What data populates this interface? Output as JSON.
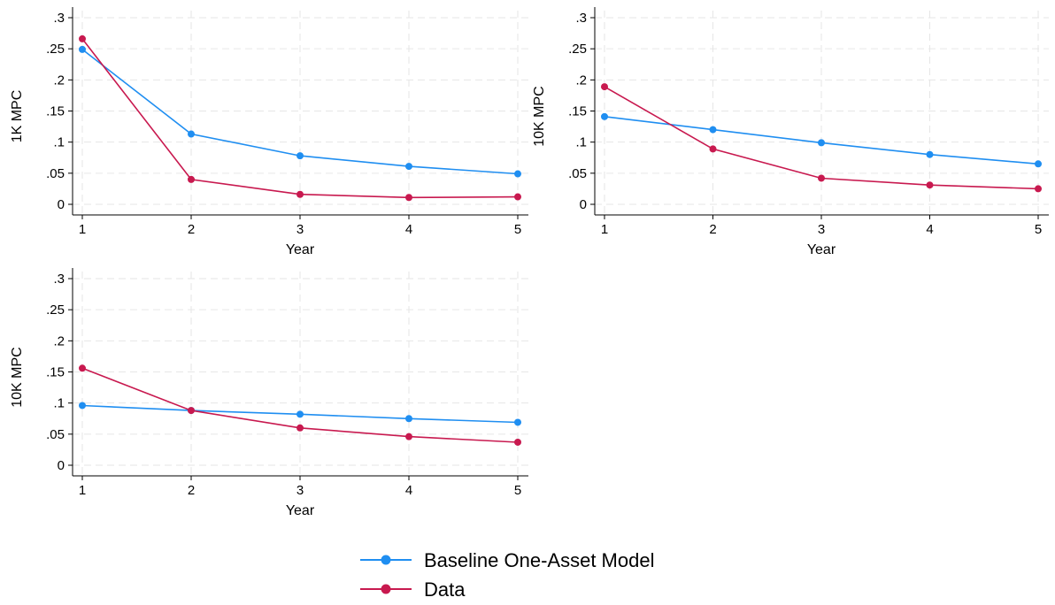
{
  "chart_data": [
    {
      "type": "line",
      "xlabel": "Year",
      "ylabel": "1K MPC",
      "x": [
        1,
        2,
        3,
        4,
        5
      ],
      "xticks": [
        "1",
        "2",
        "3",
        "4",
        "5"
      ],
      "ylim": [
        0,
        0.3
      ],
      "yticks": [
        0,
        0.05,
        0.1,
        0.15,
        0.2,
        0.25,
        0.3
      ],
      "ytick_labels": [
        "0",
        ".05",
        ".1",
        ".15",
        ".2",
        ".25",
        ".3"
      ],
      "grid": true,
      "series": [
        {
          "name": "Baseline One-Asset Model",
          "values": [
            0.249,
            0.113,
            0.078,
            0.061,
            0.049
          ]
        },
        {
          "name": "Data",
          "values": [
            0.266,
            0.04,
            0.016,
            0.011,
            0.012
          ]
        }
      ]
    },
    {
      "type": "line",
      "xlabel": "Year",
      "ylabel": "10K MPC",
      "x": [
        1,
        2,
        3,
        4,
        5
      ],
      "xticks": [
        "1",
        "2",
        "3",
        "4",
        "5"
      ],
      "ylim": [
        0,
        0.3
      ],
      "yticks": [
        0,
        0.05,
        0.1,
        0.15,
        0.2,
        0.25,
        0.3
      ],
      "ytick_labels": [
        "0",
        ".05",
        ".1",
        ".15",
        ".2",
        ".25",
        ".3"
      ],
      "grid": true,
      "series": [
        {
          "name": "Baseline One-Asset Model",
          "values": [
            0.141,
            0.12,
            0.099,
            0.08,
            0.065
          ]
        },
        {
          "name": "Data",
          "values": [
            0.189,
            0.089,
            0.042,
            0.031,
            0.025
          ]
        }
      ]
    },
    {
      "type": "line",
      "xlabel": "Year",
      "ylabel": "10K MPC",
      "x": [
        1,
        2,
        3,
        4,
        5
      ],
      "xticks": [
        "1",
        "2",
        "3",
        "4",
        "5"
      ],
      "ylim": [
        0,
        0.3
      ],
      "yticks": [
        0,
        0.05,
        0.1,
        0.15,
        0.2,
        0.25,
        0.3
      ],
      "ytick_labels": [
        "0",
        ".05",
        ".1",
        ".15",
        ".2",
        ".25",
        ".3"
      ],
      "grid": true,
      "series": [
        {
          "name": "Baseline One-Asset Model",
          "values": [
            0.096,
            0.088,
            0.082,
            0.075,
            0.069
          ]
        },
        {
          "name": "Data",
          "values": [
            0.156,
            0.088,
            0.06,
            0.046,
            0.037
          ]
        }
      ]
    }
  ],
  "legend": {
    "position": "bottom-center",
    "entries": [
      {
        "label": "Baseline One-Asset Model",
        "color": "#1f8ef1"
      },
      {
        "label": "Data",
        "color": "#c8194f"
      }
    ]
  },
  "colors": {
    "Baseline One-Asset Model": "#1f8ef1",
    "Data": "#c8194f"
  }
}
